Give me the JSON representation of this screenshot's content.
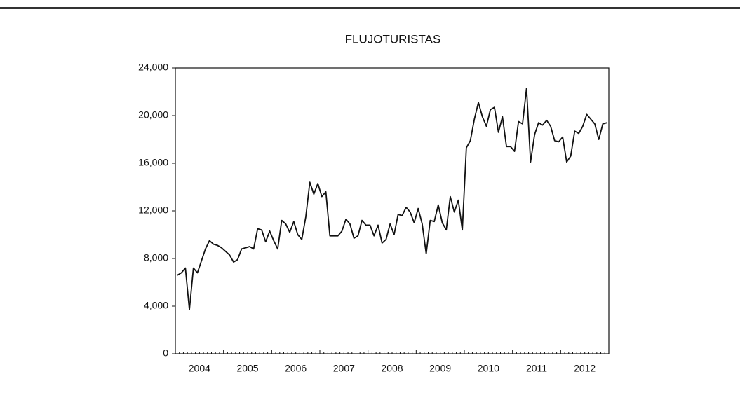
{
  "chart_data": {
    "type": "line",
    "title": "FLUJOTURISTAS",
    "color": "#111111",
    "categories": [
      null,
      null,
      null,
      null,
      null,
      null,
      "2004",
      null,
      null,
      null,
      null,
      null,
      null,
      null,
      null,
      null,
      null,
      null,
      "2005",
      null,
      null,
      null,
      null,
      null,
      null,
      null,
      null,
      null,
      null,
      null,
      "2006",
      null,
      null,
      null,
      null,
      null,
      null,
      null,
      null,
      null,
      null,
      null,
      "2007",
      null,
      null,
      null,
      null,
      null,
      null,
      null,
      null,
      null,
      null,
      null,
      "2008",
      null,
      null,
      null,
      null,
      null,
      null,
      null,
      null,
      null,
      null,
      null,
      "2009",
      null,
      null,
      null,
      null,
      null,
      null,
      null,
      null,
      null,
      null,
      null,
      "2010",
      null,
      null,
      null,
      null,
      null,
      null,
      null,
      null,
      null,
      null,
      null,
      "2011",
      null,
      null,
      null,
      null,
      null,
      null,
      null,
      null,
      null,
      null,
      null,
      "2012",
      null,
      null,
      null,
      null,
      null
    ],
    "values": [
      6600,
      6800,
      7200,
      3700,
      7200,
      6800,
      7800,
      8800,
      9500,
      9200,
      9100,
      8900,
      8600,
      8300,
      7700,
      7900,
      8800,
      8900,
      9000,
      8800,
      10500,
      10400,
      9400,
      10300,
      9500,
      8800,
      11200,
      10900,
      10200,
      11100,
      10000,
      9600,
      11500,
      14400,
      13400,
      14300,
      13200,
      13600,
      9900,
      9900,
      9900,
      10300,
      11300,
      10900,
      9700,
      9900,
      11200,
      10800,
      10800,
      9900,
      10800,
      9300,
      9600,
      10900,
      10000,
      11700,
      11600,
      12300,
      11900,
      11000,
      12200,
      10900,
      8400,
      11200,
      11100,
      12500,
      11000,
      10400,
      13200,
      11900,
      12900,
      10400,
      17300,
      17900,
      19700,
      21100,
      19900,
      19100,
      20500,
      20700,
      18600,
      19900,
      17400,
      17400,
      17000,
      19500,
      19300,
      22300,
      16100,
      18400,
      19400,
      19200,
      19600,
      19100,
      17900,
      17800,
      18200,
      16100,
      16600,
      18700,
      18500,
      19100,
      20100,
      19700,
      19300,
      18000,
      19300,
      19400
    ],
    "ylim": [
      0,
      24000
    ],
    "yticks": [
      0,
      {
        "value": 4000,
        "label": "4,000"
      },
      {
        "value": 8000,
        "label": "8,000"
      },
      {
        "value": 12000,
        "label": "12,000"
      },
      {
        "value": 16000,
        "label": "16,000"
      },
      {
        "value": 20000,
        "label": "20,000"
      },
      {
        "value": 24000,
        "label": "24,000"
      }
    ]
  }
}
